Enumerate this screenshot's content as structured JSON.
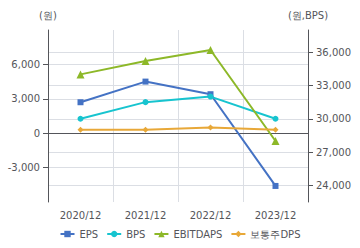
{
  "chart_data": {
    "type": "line",
    "categories": [
      "2020/12",
      "2021/12",
      "2022/12",
      "2023/12"
    ],
    "series": [
      {
        "name": "EPS",
        "color": "#4472c4",
        "marker": "square",
        "values": [
          2700,
          4500,
          3400,
          -4600
        ]
      },
      {
        "name": "BPS",
        "color": "#17c4cf",
        "marker": "circle",
        "axis": "y2",
        "values": [
          30000,
          31500,
          32000,
          30000
        ]
      },
      {
        "name": "EBITDAPS",
        "color": "#8db828",
        "marker": "triangle",
        "axis": "y2",
        "values": [
          34000,
          35200,
          36200,
          28000
        ]
      },
      {
        "name": "보통주DPS",
        "color": "#e8a838",
        "marker": "diamond",
        "values": [
          300,
          300,
          500,
          300
        ]
      }
    ],
    "ylabel": "(원)",
    "y2label": "(원,BPS)",
    "ylim": [
      -6000,
      9000
    ],
    "yticks": [
      {
        "value": -3000,
        "label": "-3,000"
      },
      0,
      {
        "value": 3000,
        "label": "3,000"
      },
      {
        "value": 6000,
        "label": "6,000"
      }
    ],
    "y2lim": [
      22500,
      38000
    ],
    "y2ticks": [
      {
        "value": 24000,
        "label": "24,000"
      },
      {
        "value": 27000,
        "label": "27,000"
      },
      {
        "value": 30000,
        "label": "30,000"
      },
      {
        "value": 33000,
        "label": "33,000"
      },
      {
        "value": 36000,
        "label": "36,000"
      }
    ],
    "grid": true,
    "legend": "bottom"
  }
}
